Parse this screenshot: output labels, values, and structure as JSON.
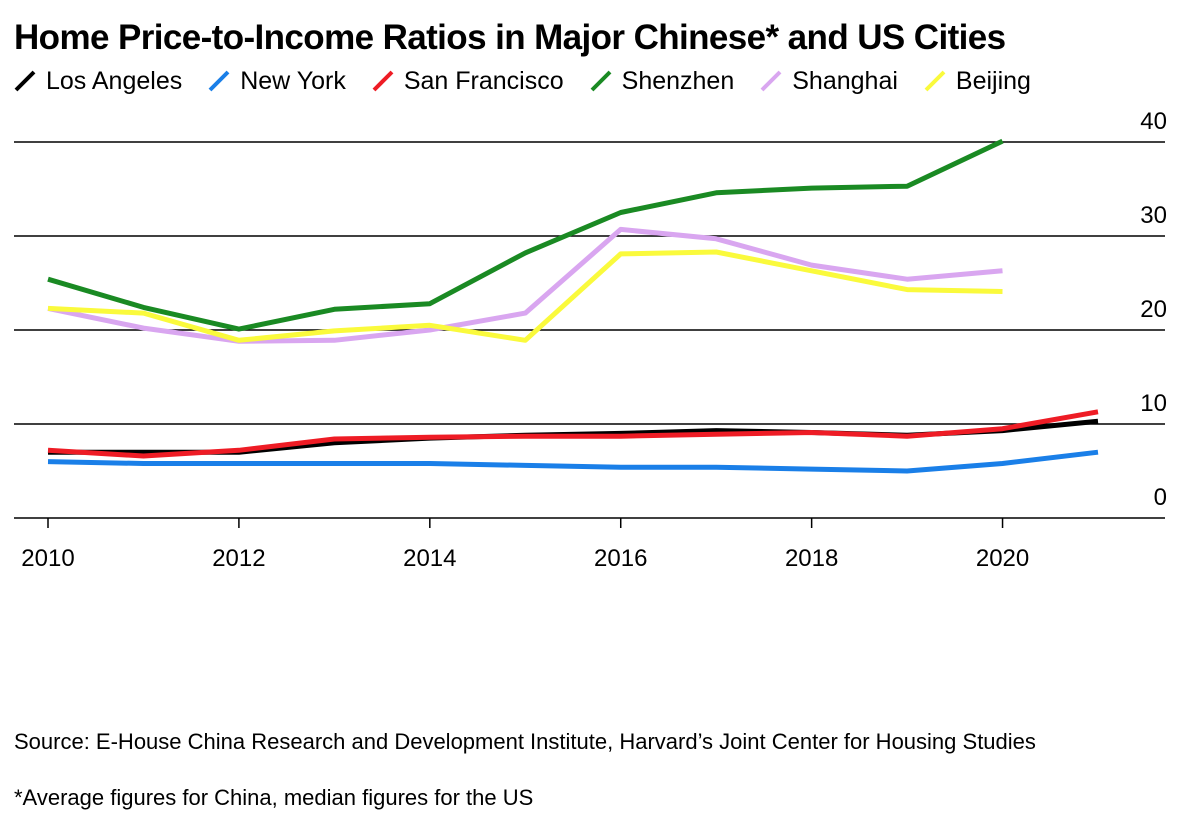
{
  "title": "Home Price-to-Income Ratios in Major Chinese* and US Cities",
  "source": "Source: E-House China Research and Development Institute, Harvard’s Joint Center for Housing Studies",
  "note": "*Average figures for China, median figures for the US",
  "chart_data": {
    "type": "line",
    "title": "Home Price-to-Income Ratios in Major Chinese* and US Cities",
    "x": [
      2010,
      2011,
      2012,
      2013,
      2014,
      2015,
      2016,
      2017,
      2018,
      2019,
      2020,
      2021
    ],
    "xlim": [
      2010,
      2021.7
    ],
    "x_ticks": [
      2010,
      2012,
      2014,
      2016,
      2018,
      2020
    ],
    "ylim": [
      0,
      40
    ],
    "y_ticks": [
      0,
      10,
      20,
      30,
      40
    ],
    "ytick_position": "right",
    "grid": "horizontal",
    "legend_position": "top",
    "series": [
      {
        "name": "Los Angeles",
        "color": "#000000",
        "values": [
          7.0,
          7.0,
          7.0,
          8.0,
          8.5,
          8.8,
          9.0,
          9.3,
          9.1,
          8.8,
          9.3,
          10.3
        ]
      },
      {
        "name": "New York",
        "color": "#1a7fe8",
        "values": [
          6.0,
          5.8,
          5.8,
          5.8,
          5.8,
          5.6,
          5.4,
          5.4,
          5.2,
          5.0,
          5.8,
          7.0
        ]
      },
      {
        "name": "San Francisco",
        "color": "#ee1c25",
        "values": [
          7.2,
          6.6,
          7.2,
          8.4,
          8.6,
          8.7,
          8.7,
          8.9,
          9.1,
          8.7,
          9.5,
          11.3
        ]
      },
      {
        "name": "Shenzhen",
        "color": "#1a8a23",
        "values": [
          25.4,
          22.4,
          20.1,
          22.2,
          22.8,
          28.2,
          32.5,
          34.6,
          35.1,
          35.3,
          40.1,
          null
        ]
      },
      {
        "name": "Shanghai",
        "color": "#d9a6f0",
        "values": [
          22.3,
          20.2,
          18.8,
          18.9,
          20.0,
          21.8,
          30.7,
          29.7,
          26.9,
          25.4,
          26.3,
          null
        ]
      },
      {
        "name": "Beijing",
        "color": "#fafa3c",
        "values": [
          22.3,
          21.8,
          18.9,
          19.9,
          20.5,
          18.9,
          28.1,
          28.3,
          26.3,
          24.3,
          24.1,
          null
        ]
      }
    ]
  }
}
